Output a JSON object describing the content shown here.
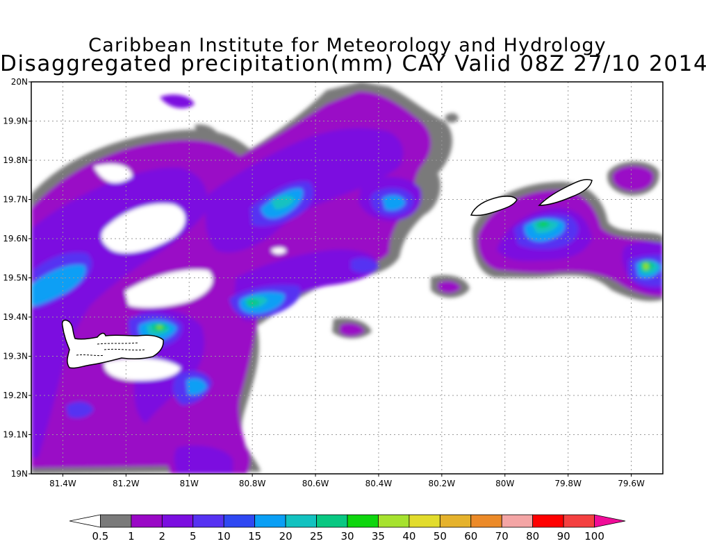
{
  "title": "Caribbean Institute for Meteorology and Hydrology",
  "subtitle": "Disaggregated precipitation(mm) CAY Valid 08Z 27/10 2014",
  "map": {
    "lon_range": [
      -81.5,
      -79.5
    ],
    "lat_range": [
      19.0,
      20.0
    ],
    "x_ticks": [
      {
        "value": -81.4,
        "label": "81.4W"
      },
      {
        "value": -81.2,
        "label": "81.2W"
      },
      {
        "value": -81.0,
        "label": "81W"
      },
      {
        "value": -80.8,
        "label": "80.8W"
      },
      {
        "value": -80.6,
        "label": "80.6W"
      },
      {
        "value": -80.4,
        "label": "80.4W"
      },
      {
        "value": -80.2,
        "label": "80.2W"
      },
      {
        "value": -80.0,
        "label": "80W"
      },
      {
        "value": -79.8,
        "label": "79.8W"
      },
      {
        "value": -79.6,
        "label": "79.6W"
      }
    ],
    "y_ticks": [
      {
        "value": 19.0,
        "label": "19N"
      },
      {
        "value": 19.1,
        "label": "19.1N"
      },
      {
        "value": 19.2,
        "label": "19.2N"
      },
      {
        "value": 19.3,
        "label": "19.3N"
      },
      {
        "value": 19.4,
        "label": "19.4N"
      },
      {
        "value": 19.5,
        "label": "19.5N"
      },
      {
        "value": 19.6,
        "label": "19.6N"
      },
      {
        "value": 19.7,
        "label": "19.7N"
      },
      {
        "value": 19.8,
        "label": "19.8N"
      },
      {
        "value": 19.9,
        "label": "19.9N"
      },
      {
        "value": 20.0,
        "label": "20N"
      }
    ],
    "grid": true
  },
  "colorbar": {
    "labels": [
      "0.5",
      "1",
      "2",
      "5",
      "10",
      "15",
      "20",
      "25",
      "30",
      "35",
      "40",
      "50",
      "60",
      "70",
      "80",
      "90",
      "100"
    ],
    "colors": [
      "#ffffff",
      "#7a7a7a",
      "#9a08c6",
      "#7b0ee0",
      "#5632f2",
      "#2f48f2",
      "#0a9ff5",
      "#12c2c0",
      "#08c882",
      "#0ed60e",
      "#a6e22e",
      "#e2dc2c",
      "#e5b22c",
      "#ec8a28",
      "#f4a5a5",
      "#ff0000",
      "#f44040",
      "#f00c98"
    ]
  }
}
